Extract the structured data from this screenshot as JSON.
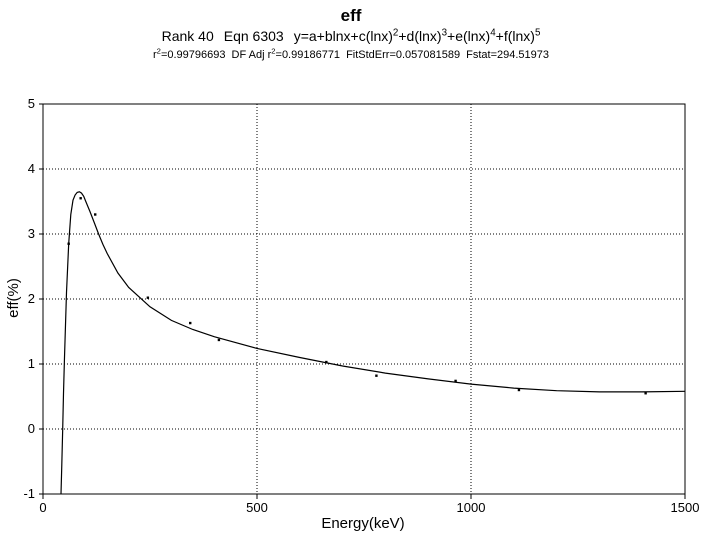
{
  "header": {
    "title": "eff",
    "rank": "Rank 40",
    "eqn": "Eqn 6303",
    "equation_parts": [
      "y=a+blnx+c(lnx)",
      "2",
      "+d(lnx)",
      "3",
      "+e(lnx)",
      "4",
      "+f(lnx)",
      "5"
    ],
    "r2_prefix": "r",
    "r2_sup": "2",
    "r2_value": "=0.99796693",
    "adj_prefix": "DF Adj r",
    "adj_sup": "2",
    "adj_value": "=0.99186771",
    "fitstderr": "FitStdErr=0.057081589",
    "fstat": "Fstat=294.51973"
  },
  "chart_data": {
    "type": "scatter",
    "title": "eff",
    "xlabel": "Energy(keV)",
    "ylabel": "eff(%)",
    "xlim": [
      0,
      1500
    ],
    "ylim": [
      -1,
      5
    ],
    "x_ticks": [
      0,
      500,
      1000,
      1500
    ],
    "y_ticks": [
      -1,
      0,
      1,
      2,
      3,
      4,
      5
    ],
    "grid": true,
    "series": [
      {
        "kind": "points",
        "x": [
          60,
          88,
          122,
          245,
          344,
          411,
          662,
          779,
          964,
          1112,
          1408
        ],
        "y": [
          2.85,
          3.55,
          3.3,
          2.02,
          1.63,
          1.37,
          1.03,
          0.82,
          0.74,
          0.6,
          0.55
        ]
      },
      {
        "kind": "fit-curve",
        "x": [
          42,
          44,
          46,
          48,
          50,
          52,
          55,
          60,
          65,
          70,
          75,
          80,
          85,
          90,
          95,
          100,
          110,
          120,
          130,
          140,
          150,
          175,
          200,
          250,
          300,
          350,
          400,
          500,
          600,
          700,
          800,
          900,
          1000,
          1100,
          1200,
          1300,
          1400,
          1500
        ],
        "y": [
          -1.0,
          -0.55,
          0.0,
          0.55,
          1.05,
          1.5,
          2.1,
          2.85,
          3.3,
          3.52,
          3.6,
          3.64,
          3.65,
          3.63,
          3.58,
          3.5,
          3.34,
          3.17,
          3.0,
          2.84,
          2.7,
          2.4,
          2.18,
          1.88,
          1.67,
          1.53,
          1.42,
          1.24,
          1.1,
          0.97,
          0.86,
          0.77,
          0.69,
          0.63,
          0.59,
          0.57,
          0.57,
          0.58
        ]
      }
    ]
  }
}
